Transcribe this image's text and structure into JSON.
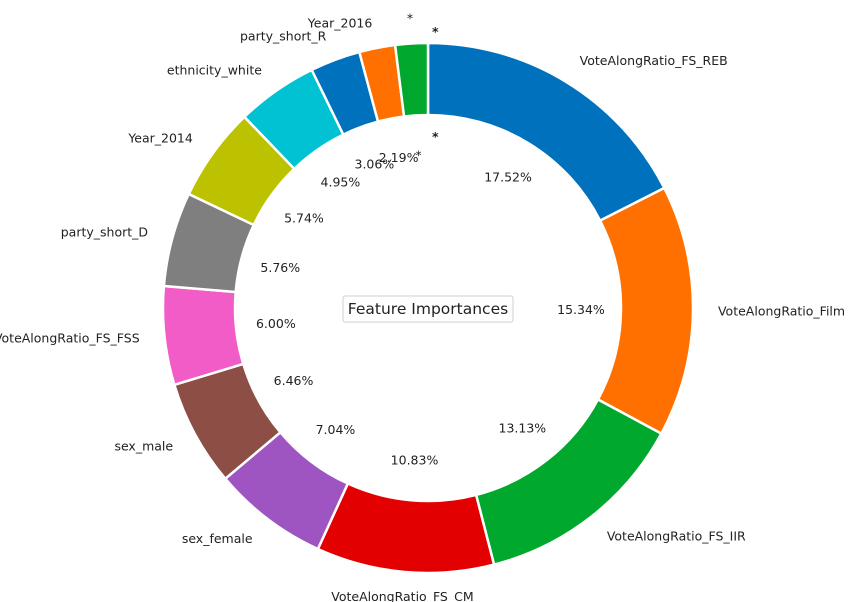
{
  "chart_data": {
    "type": "pie",
    "style": "donut",
    "title": "Feature Importances",
    "start_angle_deg": 0,
    "direction": "clockwise",
    "slices": [
      {
        "label": "VoteAlongRatio_FS_REB",
        "value": 17.52,
        "pct_label": "17.52%",
        "color": "#0072BD"
      },
      {
        "label": "VoteAlongRatio_Film",
        "value": 15.34,
        "pct_label": "15.34%",
        "color": "#FF7000"
      },
      {
        "label": "VoteAlongRatio_FS_IIR",
        "value": 13.13,
        "pct_label": "13.13%",
        "color": "#00A92E"
      },
      {
        "label": "VoteAlongRatio_FS_CM",
        "value": 10.83,
        "pct_label": "10.83%",
        "color": "#E20000"
      },
      {
        "label": "sex_female",
        "value": 7.04,
        "pct_label": "7.04%",
        "color": "#9E55C2"
      },
      {
        "label": "sex_male",
        "value": 6.46,
        "pct_label": "6.46%",
        "color": "#8C4E45"
      },
      {
        "label": "VoteAlongRatio_FS_FSS",
        "value": 6.0,
        "pct_label": "6.00%",
        "color": "#F25CC6"
      },
      {
        "label": "party_short_D",
        "value": 5.76,
        "pct_label": "5.76%",
        "color": "#7F7F7F"
      },
      {
        "label": "Year_2014",
        "value": 5.74,
        "pct_label": "5.74%",
        "color": "#BCC200"
      },
      {
        "label": "ethnicity_white",
        "value": 4.95,
        "pct_label": "4.95%",
        "color": "#00C2D2"
      },
      {
        "label": "party_short_R",
        "value": 3.06,
        "pct_label": "3.06%",
        "color": "#0072BD"
      },
      {
        "label": "Year_2016",
        "value": 2.19,
        "pct_label": "2.19%",
        "color": "#FF7000"
      },
      {
        "label": "*",
        "value": 1.98,
        "pct_label": "*",
        "color": "#00A92E"
      }
    ],
    "extra_marks": [
      "*",
      "*"
    ]
  }
}
